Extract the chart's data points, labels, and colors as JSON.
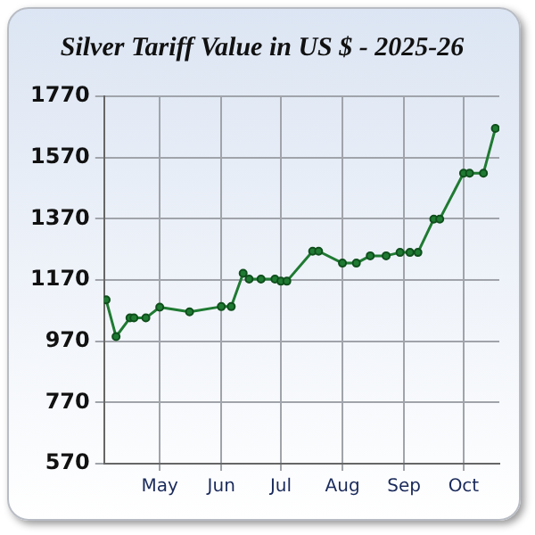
{
  "chart_data": {
    "type": "line",
    "title": "Silver Tariff Value in US $ - 2025-26",
    "x": [
      "2025-04-04",
      "2025-04-09",
      "2025-04-16",
      "2025-04-18",
      "2025-04-24",
      "2025-05-01",
      "2025-05-16",
      "2025-06-01",
      "2025-06-06",
      "2025-06-12",
      "2025-06-15",
      "2025-06-21",
      "2025-06-28",
      "2025-07-01",
      "2025-07-04",
      "2025-07-17",
      "2025-07-20",
      "2025-08-01",
      "2025-08-08",
      "2025-08-15",
      "2025-08-23",
      "2025-08-30",
      "2025-09-04",
      "2025-09-08",
      "2025-09-16",
      "2025-09-19",
      "2025-10-01",
      "2025-10-04",
      "2025-10-11",
      "2025-10-17"
    ],
    "series": [
      {
        "color": "#1f7a32",
        "values": [
          1105,
          985,
          1046,
          1046,
          1046,
          1081,
          1066,
          1083,
          1083,
          1192,
          1173,
          1173,
          1173,
          1166,
          1166,
          1264,
          1264,
          1225,
          1225,
          1249,
          1249,
          1260,
          1260,
          1260,
          1369,
          1369,
          1519,
          1519,
          1519,
          1665
        ]
      }
    ],
    "xlim": [
      "2025-04-03",
      "2025-10-19"
    ],
    "xticks": [
      {
        "value": "2025-05-01",
        "label": "May"
      },
      {
        "value": "2025-06-01",
        "label": "Jun"
      },
      {
        "value": "2025-07-01",
        "label": "Jul"
      },
      {
        "value": "2025-08-01",
        "label": "Aug"
      },
      {
        "value": "2025-09-01",
        "label": "Sep"
      },
      {
        "value": "2025-10-01",
        "label": "Oct"
      }
    ],
    "ylim": [
      570,
      1770
    ],
    "yticks": [
      570,
      770,
      970,
      1170,
      1370,
      1570,
      1770
    ],
    "grid": true,
    "legend": false,
    "marker": "circle",
    "line_style": "solid"
  }
}
